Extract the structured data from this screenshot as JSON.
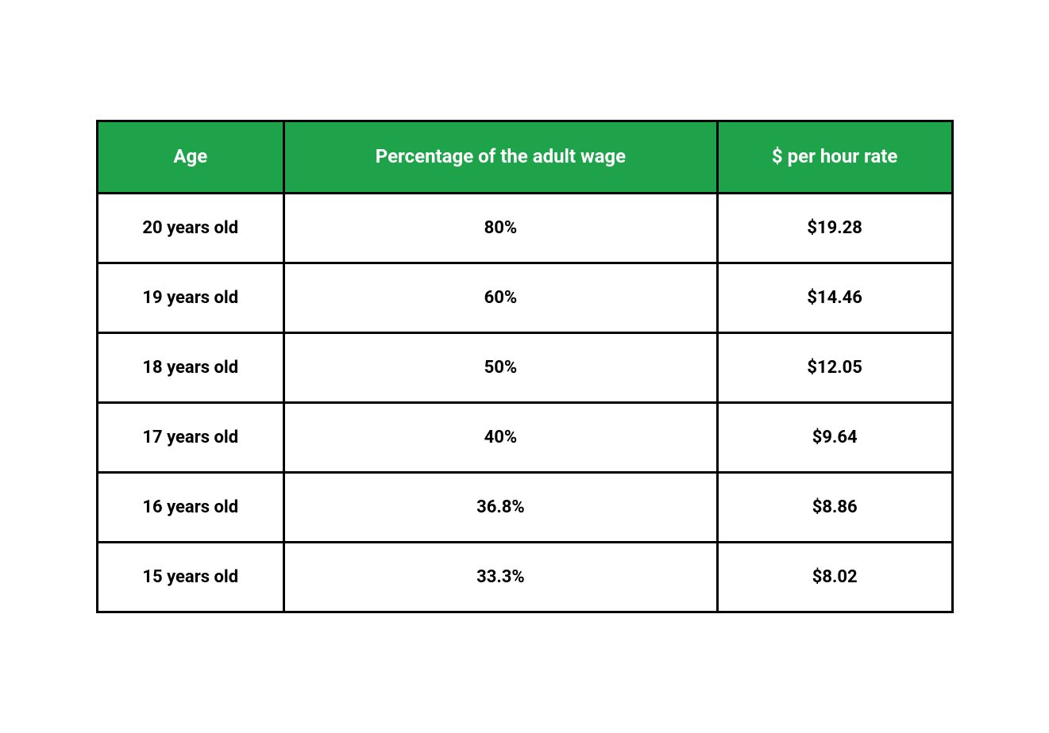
{
  "table": {
    "type": "table",
    "header_bg_color": "#1fa34a",
    "header_text_color": "#ffffff",
    "body_bg_color": "#ffffff",
    "body_text_color": "#000000",
    "border_color": "#000000",
    "border_width": 3,
    "header_fontsize": 24,
    "body_fontsize": 22,
    "font_weight": 700,
    "columns": [
      {
        "label": "Age",
        "width": "33.3%"
      },
      {
        "label": "Percentage of the adult wage",
        "width": "33.3%"
      },
      {
        "label": "$ per hour rate",
        "width": "33.3%"
      }
    ],
    "rows": [
      {
        "age": "20 years old",
        "percentage": "80%",
        "rate": "$19.28"
      },
      {
        "age": "19 years old",
        "percentage": "60%",
        "rate": "$14.46"
      },
      {
        "age": "18 years old",
        "percentage": "50%",
        "rate": "$12.05"
      },
      {
        "age": "17 years old",
        "percentage": "40%",
        "rate": "$9.64"
      },
      {
        "age": "16 years old",
        "percentage": "36.8%",
        "rate": "$8.86"
      },
      {
        "age": "15 years old",
        "percentage": "33.3%",
        "rate": "$8.02"
      }
    ]
  }
}
